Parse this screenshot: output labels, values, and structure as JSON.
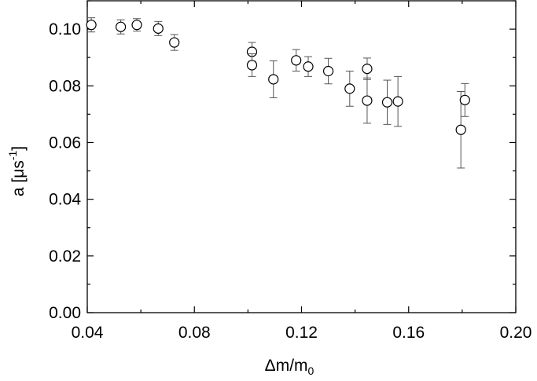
{
  "chart_data": {
    "type": "scatter",
    "title": "",
    "xlabel": {
      "main": "Δm/m",
      "sub": "0"
    },
    "ylabel": {
      "main": "a [μs",
      "sup": "-1",
      "tail": "]"
    },
    "xlim": [
      0.04,
      0.2
    ],
    "ylim": [
      0.0,
      0.11
    ],
    "xticks": [
      "0.04",
      "0.08",
      "0.12",
      "0.16",
      "0.20"
    ],
    "yticks": [
      "0.00",
      "0.02",
      "0.04",
      "0.06",
      "0.08",
      "0.10"
    ],
    "grid": false,
    "marker": "open-circle",
    "points": [
      {
        "x": 0.0415,
        "y": 0.1015,
        "err": 0.0025
      },
      {
        "x": 0.0525,
        "y": 0.1008,
        "err": 0.0025
      },
      {
        "x": 0.0585,
        "y": 0.1015,
        "err": 0.0022
      },
      {
        "x": 0.0665,
        "y": 0.1002,
        "err": 0.0025
      },
      {
        "x": 0.0725,
        "y": 0.0953,
        "err": 0.0028
      },
      {
        "x": 0.1015,
        "y": 0.092,
        "err": 0.0033
      },
      {
        "x": 0.1015,
        "y": 0.0873,
        "err": 0.004
      },
      {
        "x": 0.1095,
        "y": 0.0823,
        "err": 0.0065
      },
      {
        "x": 0.118,
        "y": 0.089,
        "err": 0.0038
      },
      {
        "x": 0.1225,
        "y": 0.0868,
        "err": 0.0035
      },
      {
        "x": 0.13,
        "y": 0.0852,
        "err": 0.0045
      },
      {
        "x": 0.138,
        "y": 0.079,
        "err": 0.0062
      },
      {
        "x": 0.1445,
        "y": 0.086,
        "err": 0.0038
      },
      {
        "x": 0.1445,
        "y": 0.0748,
        "err": 0.008
      },
      {
        "x": 0.152,
        "y": 0.0742,
        "err": 0.0078
      },
      {
        "x": 0.156,
        "y": 0.0745,
        "err": 0.0088
      },
      {
        "x": 0.1795,
        "y": 0.0645,
        "err": 0.0135
      },
      {
        "x": 0.181,
        "y": 0.075,
        "err": 0.0058
      }
    ]
  }
}
